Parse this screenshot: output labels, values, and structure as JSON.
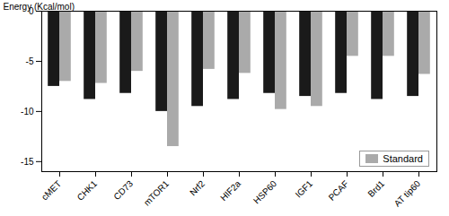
{
  "chart_data": {
    "type": "bar",
    "categories": [
      "cMET",
      "CHK1",
      "CD73",
      "mTOR1",
      "Nrf2",
      "HIF2a",
      "HSP60",
      "IGF1",
      "PCAF",
      "Brd1",
      "AT tip60"
    ],
    "series": [
      {
        "color": "#1a1a1a",
        "values": [
          -7.5,
          -8.8,
          -8.2,
          -10.0,
          -9.5,
          -8.8,
          -8.2,
          -8.5,
          -8.2,
          -8.8,
          -8.5
        ]
      },
      {
        "name": "Standard",
        "color": "#aaaaaa",
        "values": [
          -7.0,
          -7.2,
          -6.0,
          -13.5,
          -5.8,
          -6.2,
          -9.8,
          -9.5,
          -4.5,
          -4.5,
          -6.3
        ]
      }
    ],
    "ylabel": "Energy (Kcal/mol)",
    "ylim": [
      -16,
      0
    ],
    "yticks": [
      0,
      -5,
      -10,
      -15
    ],
    "grid": false,
    "legend": "lower right"
  }
}
